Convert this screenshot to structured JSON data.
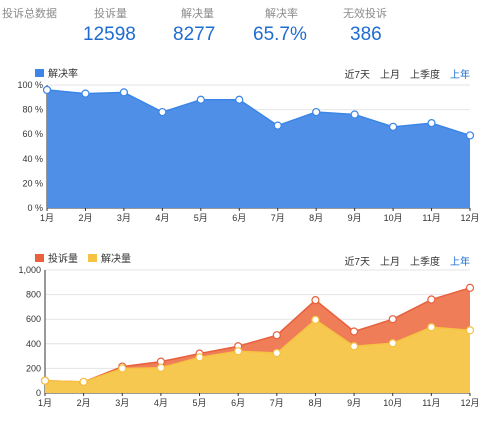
{
  "summary": {
    "title": "投诉总数据",
    "stats": [
      {
        "label": "投诉量",
        "value": "12598"
      },
      {
        "label": "解决量",
        "value": "8277"
      },
      {
        "label": "解决率",
        "value": "65.7%"
      },
      {
        "label": "无效投诉",
        "value": "386"
      }
    ]
  },
  "ranges": [
    "近7天",
    "上月",
    "上季度",
    "上年"
  ],
  "active_range": "上年",
  "colors": {
    "rate": "#3a85e6",
    "rate_fill": "#4f8fe8",
    "complaints": "#e8603c",
    "complaints_fill": "#ee7d58",
    "resolved": "#f5c242",
    "resolved_fill": "#f7c84f",
    "accent": "#1f6cd1"
  },
  "chart_data": [
    {
      "type": "area",
      "categories": [
        "1月",
        "2月",
        "3月",
        "4月",
        "5月",
        "6月",
        "7月",
        "8月",
        "9月",
        "10月",
        "11月",
        "12月"
      ],
      "series": [
        {
          "name": "解决率",
          "values": [
            96,
            93,
            94,
            78,
            88,
            88,
            67,
            78,
            76,
            66,
            69,
            59
          ]
        }
      ],
      "ylim": [
        0,
        100
      ],
      "yticks": [
        "0 %",
        "20 %",
        "40 %",
        "60 %",
        "80 %",
        "100 %"
      ],
      "grid": true,
      "legend": "top-left"
    },
    {
      "type": "area",
      "categories": [
        "1月",
        "2月",
        "3月",
        "4月",
        "5月",
        "6月",
        "7月",
        "8月",
        "9月",
        "10月",
        "11月",
        "12月"
      ],
      "series": [
        {
          "name": "投诉量",
          "values": [
            100,
            90,
            215,
            255,
            320,
            380,
            470,
            755,
            500,
            600,
            760,
            855
          ]
        },
        {
          "name": "解决量",
          "values": [
            100,
            90,
            200,
            205,
            290,
            340,
            325,
            595,
            380,
            405,
            535,
            510
          ]
        }
      ],
      "ylim": [
        0,
        1000
      ],
      "yticks": [
        "0",
        "200",
        "400",
        "600",
        "800",
        "1,000"
      ],
      "grid": true,
      "legend": "top-left"
    }
  ]
}
